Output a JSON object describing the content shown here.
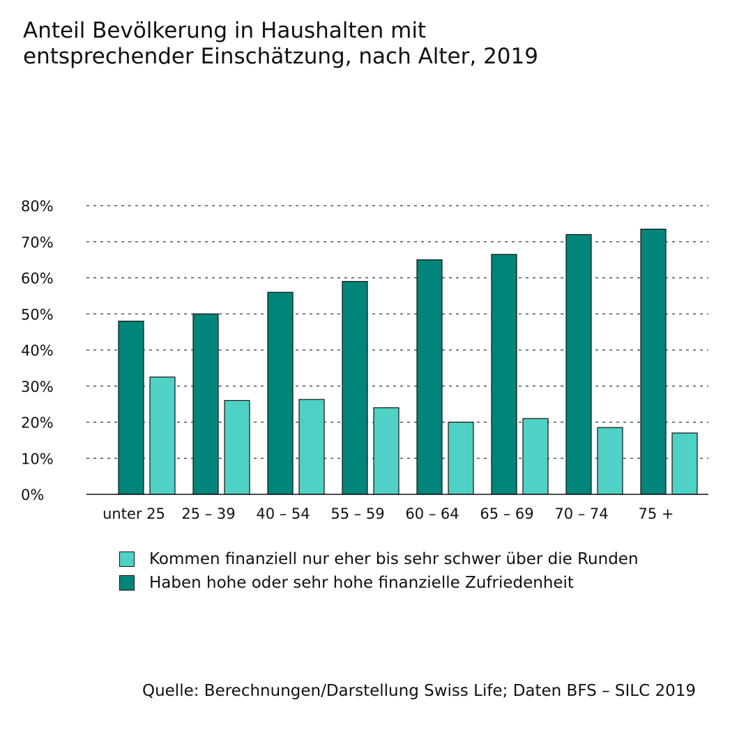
{
  "colors": {
    "dark": "#00857A",
    "light": "#4FD1C5",
    "outline": "#111111",
    "grid": "#333333"
  },
  "chart_data": {
    "type": "bar",
    "title": [
      "Anteil Bevölkerung in Haushalten mit",
      "entsprechender Einschätzung, nach Alter, 2019"
    ],
    "categories": [
      "unter 25",
      "25 – 39",
      "40 – 54",
      "55 – 59",
      "60 – 64",
      "65 – 69",
      "70 – 74",
      "75 +"
    ],
    "series": [
      {
        "name": "Haben hohe oder sehr hohe finanzielle Zufriedenheit",
        "color": "#00857A",
        "values": [
          48,
          50,
          56,
          59,
          65,
          66.5,
          72,
          73.5
        ]
      },
      {
        "name": "Kommen finanziell nur eher bis sehr schwer über die Runden",
        "color": "#4FD1C5",
        "values": [
          32.5,
          26,
          26.3,
          24,
          20,
          21,
          18.5,
          17
        ]
      }
    ],
    "ylim": [
      0,
      80
    ],
    "yticks": [
      0,
      10,
      20,
      30,
      40,
      50,
      60,
      70,
      80
    ],
    "ytick_labels": [
      "0%",
      "10%",
      "20%",
      "30%",
      "40%",
      "50%",
      "60%",
      "70%",
      "80%"
    ],
    "grid": true,
    "legend": {
      "position": "bottom",
      "entries": [
        {
          "label": "Kommen finanziell nur eher bis sehr schwer über die Runden",
          "color": "#4FD1C5"
        },
        {
          "label": "Haben hohe oder sehr hohe finanzielle Zufriedenheit",
          "color": "#00857A"
        }
      ]
    }
  },
  "source": "Quelle: Berechnungen/Darstellung Swiss Life; Daten BFS – SILC 2019"
}
